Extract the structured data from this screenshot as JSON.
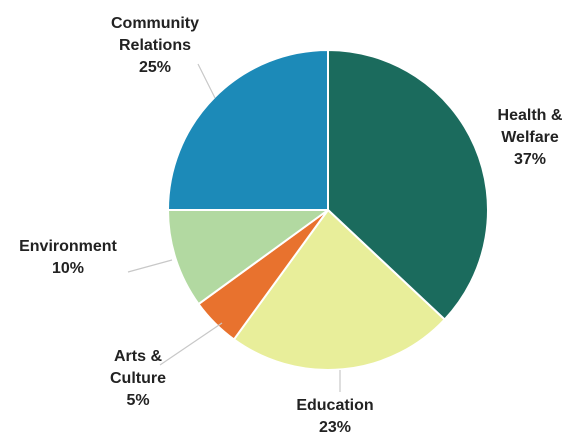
{
  "chart_data": {
    "type": "pie",
    "title": "",
    "legend": "none",
    "slices": [
      {
        "label_lines": [
          "Health &",
          "Welfare"
        ],
        "pct_label": "37%",
        "value": 37,
        "color": "#1b6b5d"
      },
      {
        "label_lines": [
          "Education"
        ],
        "pct_label": "23%",
        "value": 23,
        "color": "#e8ee9a"
      },
      {
        "label_lines": [
          "Arts &",
          "Culture"
        ],
        "pct_label": "5%",
        "value": 5,
        "color": "#e8722e"
      },
      {
        "label_lines": [
          "Environment"
        ],
        "pct_label": "10%",
        "value": 10,
        "color": "#b2d9a1"
      },
      {
        "label_lines": [
          "Community",
          "Relations"
        ],
        "pct_label": "25%",
        "value": 25,
        "color": "#1c8ab8"
      }
    ]
  }
}
